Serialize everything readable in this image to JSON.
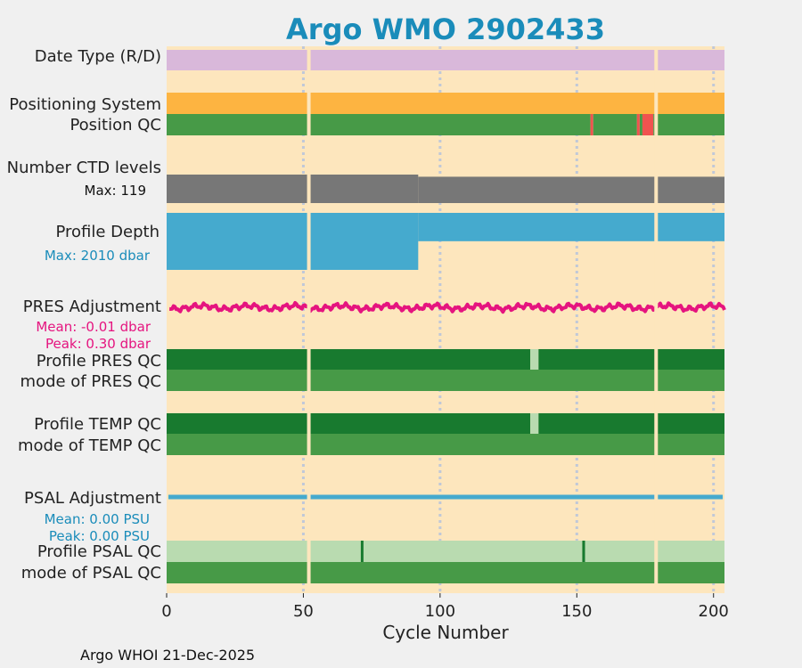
{
  "chart_data": {
    "type": "timeline",
    "title": "Argo WMO 2902433",
    "xlabel": "Cycle Number",
    "xlim": [
      0,
      204
    ],
    "xticks": [
      0,
      50,
      100,
      150,
      200
    ],
    "gap_cycles": [
      52,
      179
    ],
    "footer": "Argo WHOI 21-Dec-2025",
    "colors": {
      "background": "#fde6bd",
      "date_type": "#d9b8da",
      "positioning": "#fdb441",
      "qc_good": "#479a47",
      "qc_dark": "#187a2f",
      "qc_light": "#b9dbb0",
      "qc_bad": "#f0534f",
      "ctd": "#777777",
      "depth": "#45aace",
      "pres_adj": "#e5147f",
      "psal_adj": "#45aace"
    },
    "rows": {
      "date_type": {
        "label": "Date Type (R/D)",
        "segments": [
          {
            "from": 0,
            "to": 204,
            "color": "date_type"
          }
        ]
      },
      "positioning_system": {
        "label": "Positioning System",
        "segments": [
          {
            "from": 0,
            "to": 204,
            "color": "positioning"
          }
        ]
      },
      "position_qc": {
        "label": "Position QC",
        "segments": [
          {
            "from": 0,
            "to": 155,
            "color": "qc_good"
          },
          {
            "from": 155,
            "to": 156,
            "color": "qc_bad"
          },
          {
            "from": 156,
            "to": 172,
            "color": "qc_good"
          },
          {
            "from": 172,
            "to": 173,
            "color": "qc_bad"
          },
          {
            "from": 173,
            "to": 174,
            "color": "qc_good"
          },
          {
            "from": 174,
            "to": 178,
            "color": "qc_bad"
          },
          {
            "from": 178,
            "to": 204,
            "color": "qc_good"
          }
        ]
      },
      "ctd_levels": {
        "label": "Number CTD levels",
        "max_label": "Max: 119",
        "max": 119,
        "steps": [
          {
            "from": 0,
            "to": 92,
            "value": 119
          },
          {
            "from": 92,
            "to": 204,
            "value": 110
          }
        ]
      },
      "profile_depth": {
        "label": "Profile Depth",
        "max_label": "Max: 2010 dbar",
        "max": 2010,
        "steps": [
          {
            "from": 0,
            "to": 92,
            "value": 2010
          },
          {
            "from": 92,
            "to": 204,
            "value": 1000
          }
        ]
      },
      "pres_adjustment": {
        "label": "PRES Adjustment",
        "mean_label": "Mean: -0.01 dbar",
        "peak_label": "Peak: 0.30 dbar"
      },
      "profile_pres_qc": {
        "label": "Profile PRES QC",
        "segments": [
          {
            "from": 0,
            "to": 133,
            "color": "qc_dark"
          },
          {
            "from": 133,
            "to": 136,
            "color": "qc_light"
          },
          {
            "from": 136,
            "to": 204,
            "color": "qc_dark"
          }
        ]
      },
      "mode_pres_qc": {
        "label": "mode of PRES QC",
        "segments": [
          {
            "from": 0,
            "to": 204,
            "color": "qc_good"
          }
        ]
      },
      "profile_temp_qc": {
        "label": "Profile TEMP QC",
        "segments": [
          {
            "from": 0,
            "to": 133,
            "color": "qc_dark"
          },
          {
            "from": 133,
            "to": 136,
            "color": "qc_light"
          },
          {
            "from": 136,
            "to": 204,
            "color": "qc_dark"
          }
        ]
      },
      "mode_temp_qc": {
        "label": "mode of TEMP QC",
        "segments": [
          {
            "from": 0,
            "to": 204,
            "color": "qc_good"
          }
        ]
      },
      "psal_adjustment": {
        "label": "PSAL Adjustment",
        "mean_label": "Mean: 0.00 PSU",
        "peak_label": "Peak: 0.00 PSU"
      },
      "profile_psal_qc": {
        "label": "Profile PSAL QC",
        "segments": [
          {
            "from": 0,
            "to": 71,
            "color": "qc_light"
          },
          {
            "from": 71,
            "to": 72,
            "color": "qc_dark"
          },
          {
            "from": 72,
            "to": 152,
            "color": "qc_light"
          },
          {
            "from": 152,
            "to": 153,
            "color": "qc_dark"
          },
          {
            "from": 153,
            "to": 204,
            "color": "qc_light"
          }
        ]
      },
      "mode_psal_qc": {
        "label": "mode of PSAL QC",
        "segments": [
          {
            "from": 0,
            "to": 204,
            "color": "qc_good"
          }
        ]
      }
    }
  }
}
